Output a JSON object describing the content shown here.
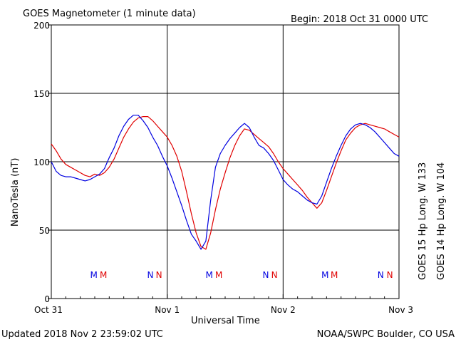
{
  "chart_data": {
    "type": "line",
    "title": "GOES Magnetometer (1 minute data)",
    "begin_label": "Begin:  2018 Oct 31 0000 UTC",
    "xlabel": "Universal Time",
    "ylabel": "NanoTesla (nT)",
    "ylim": [
      0,
      200
    ],
    "xlim_hours": [
      0,
      72
    ],
    "x_ticks": [
      {
        "label": "Oct 31",
        "hour": 0
      },
      {
        "label": "Nov 1",
        "hour": 24
      },
      {
        "label": "Nov 2",
        "hour": 48
      },
      {
        "label": "Nov 3",
        "hour": 72
      }
    ],
    "y_ticks": [
      0,
      50,
      100,
      150,
      200
    ],
    "grid": true,
    "series": [
      {
        "name": "GOES 15 Hp  Long. W 133",
        "color": "#e00000",
        "x": [
          0,
          1,
          2,
          3,
          4,
          5,
          6,
          7,
          8,
          9,
          10,
          11,
          12,
          13,
          14,
          15,
          16,
          17,
          18,
          19,
          20,
          21,
          22,
          23,
          24,
          25,
          26,
          27,
          28,
          29,
          30,
          31,
          32,
          33,
          34,
          35,
          36,
          37,
          38,
          39,
          40,
          41,
          42,
          43,
          44,
          45,
          46,
          47,
          48,
          49,
          50,
          51,
          52,
          53,
          54,
          55,
          56,
          57,
          58,
          59,
          60,
          61,
          62,
          63,
          64,
          65,
          66,
          67,
          68,
          69,
          70,
          71,
          72
        ],
        "values": [
          113,
          108,
          102,
          98,
          96,
          94,
          92,
          90,
          89,
          91,
          90,
          92,
          96,
          102,
          110,
          118,
          124,
          129,
          132,
          133,
          133,
          130,
          126,
          122,
          118,
          112,
          104,
          93,
          78,
          62,
          48,
          38,
          36,
          48,
          65,
          80,
          92,
          103,
          112,
          119,
          124,
          123,
          120,
          117,
          114,
          111,
          106,
          100,
          95,
          91,
          87,
          83,
          79,
          74,
          70,
          66,
          70,
          79,
          89,
          99,
          108,
          116,
          121,
          125,
          127,
          128,
          127,
          126,
          125,
          124,
          122,
          120,
          118
        ]
      },
      {
        "name": "GOES 14 Hp  Long. W 104",
        "color": "#0000e0",
        "x": [
          0,
          1,
          2,
          3,
          4,
          5,
          6,
          7,
          8,
          9,
          10,
          11,
          12,
          13,
          14,
          15,
          16,
          17,
          18,
          19,
          20,
          21,
          22,
          23,
          24,
          25,
          26,
          27,
          28,
          29,
          30,
          31,
          32,
          33,
          34,
          35,
          36,
          37,
          38,
          39,
          40,
          41,
          42,
          43,
          44,
          45,
          46,
          47,
          48,
          49,
          50,
          51,
          52,
          53,
          54,
          55,
          56,
          57,
          58,
          59,
          60,
          61,
          62,
          63,
          64,
          65,
          66,
          67,
          68,
          69,
          70,
          71,
          72
        ],
        "values": [
          100,
          93,
          90,
          89,
          89,
          88,
          87,
          86,
          87,
          89,
          91,
          95,
          103,
          110,
          119,
          126,
          131,
          134,
          134,
          130,
          125,
          118,
          112,
          104,
          97,
          88,
          78,
          68,
          57,
          47,
          42,
          36,
          42,
          72,
          96,
          106,
          112,
          117,
          121,
          125,
          128,
          125,
          118,
          112,
          110,
          106,
          101,
          94,
          87,
          83,
          80,
          78,
          75,
          72,
          70,
          69,
          75,
          85,
          95,
          104,
          112,
          119,
          124,
          127,
          128,
          127,
          125,
          122,
          118,
          114,
          110,
          106,
          104
        ]
      }
    ],
    "markers": [
      {
        "label": "M",
        "hour": 8.8,
        "color": "#0000e0"
      },
      {
        "label": "M",
        "hour": 10.8,
        "color": "#e00000"
      },
      {
        "label": "N",
        "hour": 20.5,
        "color": "#0000e0"
      },
      {
        "label": "N",
        "hour": 22.3,
        "color": "#e00000"
      },
      {
        "label": "M",
        "hour": 32.7,
        "color": "#0000e0"
      },
      {
        "label": "M",
        "hour": 34.7,
        "color": "#e00000"
      },
      {
        "label": "N",
        "hour": 44.4,
        "color": "#0000e0"
      },
      {
        "label": "N",
        "hour": 46.2,
        "color": "#e00000"
      },
      {
        "label": "M",
        "hour": 56.7,
        "color": "#0000e0"
      },
      {
        "label": "M",
        "hour": 58.6,
        "color": "#e00000"
      },
      {
        "label": "N",
        "hour": 68.2,
        "color": "#0000e0"
      },
      {
        "label": "N",
        "hour": 70.1,
        "color": "#e00000"
      }
    ]
  },
  "footer": {
    "updated": "Updated 2018 Nov  2 23:59:02 UTC",
    "credit": "NOAA/SWPC Boulder, CO USA"
  }
}
